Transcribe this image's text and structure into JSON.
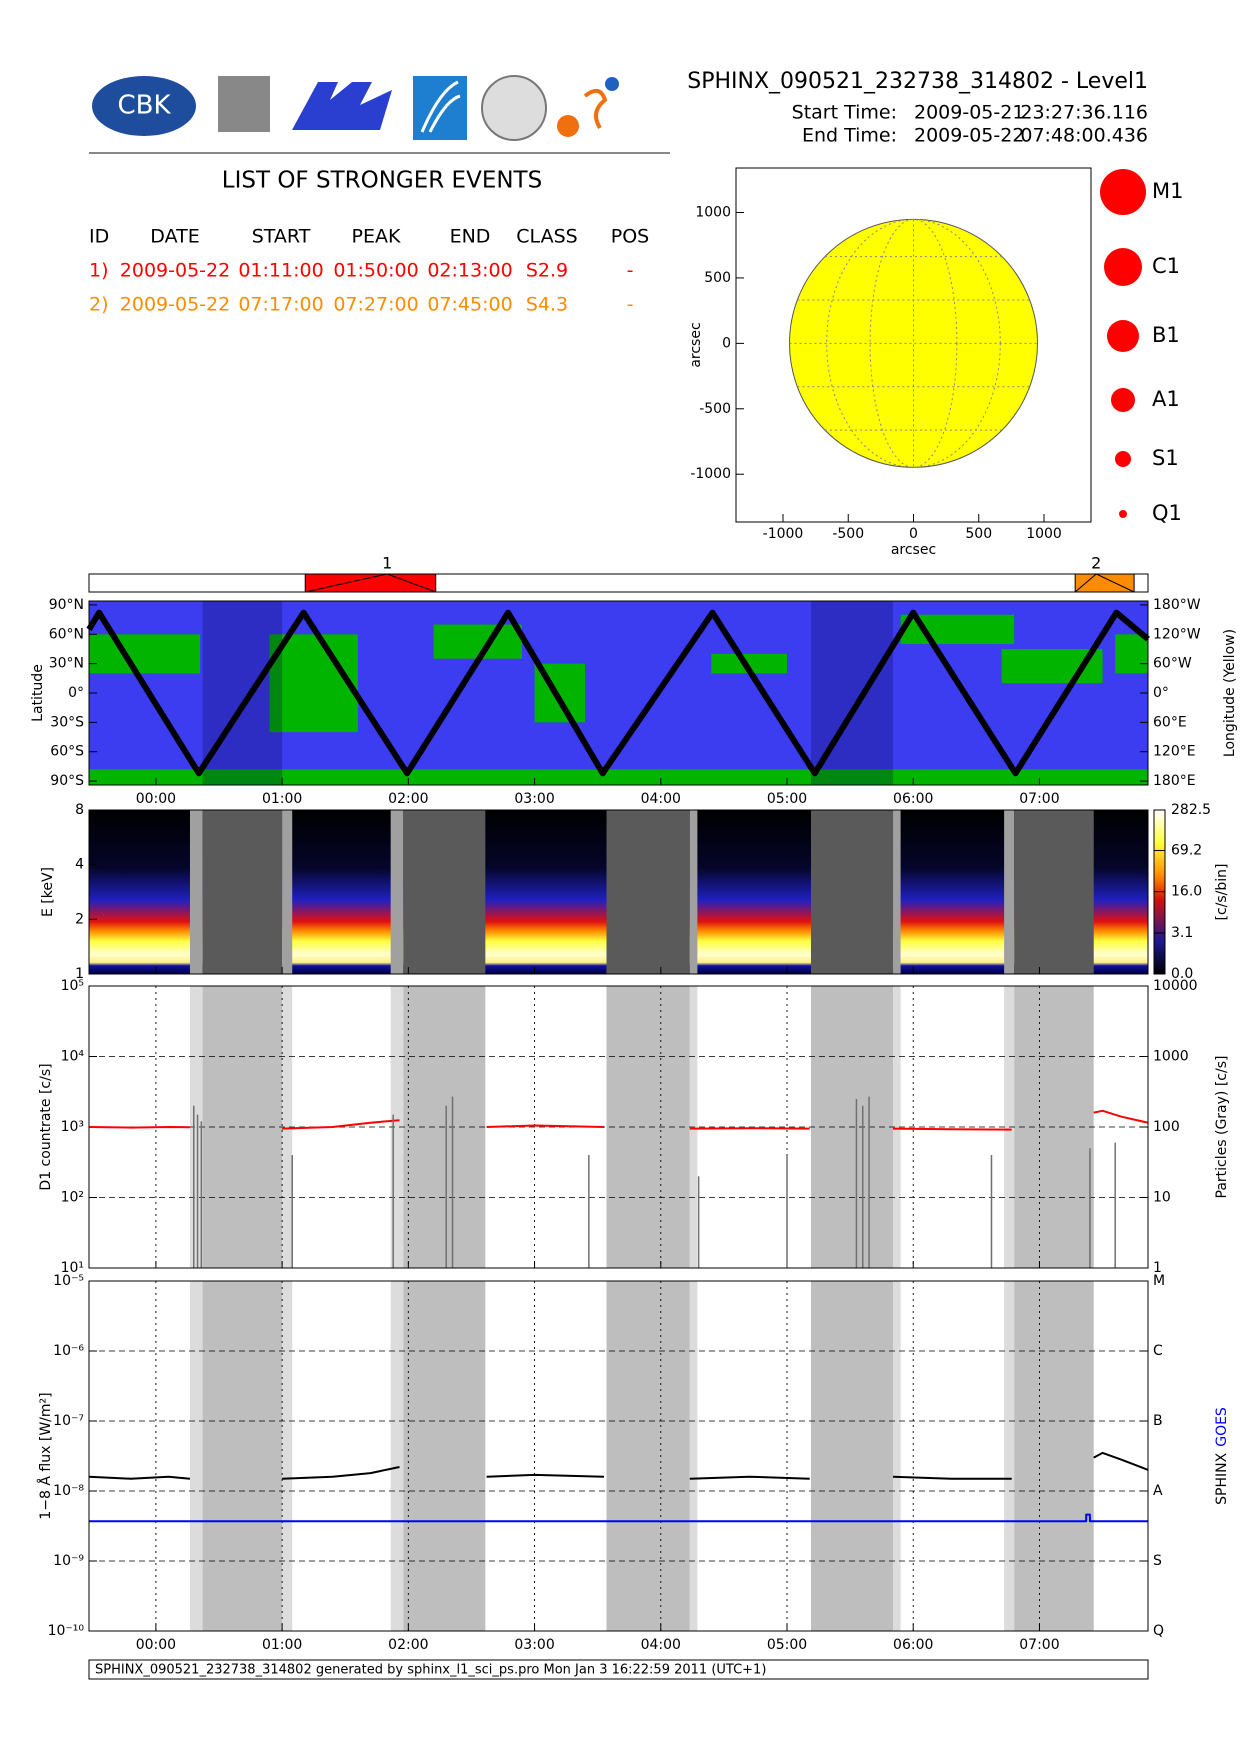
{
  "header": {
    "logo_text": "CBK",
    "title": "SPHINX_090521_232738_314802 - Level1",
    "start_label": "Start Time:",
    "start_date": "2009-05-21",
    "start_time": "23:27:36.116",
    "end_label": "End Time:",
    "end_date": "2009-05-22",
    "end_time": "07:48:00.436"
  },
  "events": {
    "title": "LIST OF STRONGER EVENTS",
    "columns": [
      "ID",
      "DATE",
      "START",
      "PEAK",
      "END",
      "CLASS",
      "POS"
    ],
    "rows": [
      {
        "color": "#ff0000",
        "cells": [
          "1)",
          "2009-05-22",
          "01:11:00",
          "01:50:00",
          "02:13:00",
          "S2.9",
          "-"
        ]
      },
      {
        "color": "#ff8c00",
        "cells": [
          "2)",
          "2009-05-22",
          "07:17:00",
          "07:27:00",
          "07:45:00",
          "S4.3",
          "-"
        ]
      }
    ]
  },
  "class_legend": {
    "color": "#ff0000",
    "labels": [
      "M1",
      "C1",
      "B1",
      "A1",
      "S1",
      "Q1"
    ]
  },
  "shading": [
    {
      "start": 0.27,
      "end": 0.37,
      "kind": "light"
    },
    {
      "start": 0.37,
      "end": 1.0,
      "kind": "dark"
    },
    {
      "start": 1.0,
      "end": 1.08,
      "kind": "light"
    },
    {
      "start": 1.86,
      "end": 1.96,
      "kind": "light"
    },
    {
      "start": 1.96,
      "end": 2.61,
      "kind": "dark"
    },
    {
      "start": 3.57,
      "end": 4.23,
      "kind": "dark"
    },
    {
      "start": 4.23,
      "end": 4.29,
      "kind": "light"
    },
    {
      "start": 5.19,
      "end": 5.84,
      "kind": "dark"
    },
    {
      "start": 5.84,
      "end": 5.9,
      "kind": "light"
    },
    {
      "start": 6.72,
      "end": 6.8,
      "kind": "light"
    },
    {
      "start": 6.8,
      "end": 7.43,
      "kind": "dark"
    }
  ],
  "footer": "SPHINX_090521_232738_314802 generated by sphinx_l1_sci_ps.pro Mon Jan  3 16:22:59 2011 (UTC+1)",
  "chart_data": [
    {
      "type": "disk",
      "xlabel": "arcsec",
      "ylabel": "arcsec",
      "xlim": [
        -1360,
        1360
      ],
      "ylim": [
        -1365,
        1340
      ],
      "xticks": [
        -1000,
        -500,
        0,
        500,
        1000
      ],
      "yticks": [
        -1000,
        -500,
        0,
        500,
        1000
      ],
      "radius": 950,
      "color": "#ffff00"
    },
    {
      "type": "events",
      "xlim": [
        -0.53,
        7.86
      ],
      "events": [
        {
          "label": "1",
          "start": 1.183,
          "peak": 1.833,
          "end": 2.217,
          "color": "#ff0000"
        },
        {
          "label": "2",
          "start": 7.283,
          "peak": 7.45,
          "end": 7.75,
          "color": "#ff8c00"
        }
      ]
    },
    {
      "type": "map",
      "ylabel": "Latitude",
      "y2label": "Longitude (Yellow)",
      "xlim": [
        -0.53,
        7.86
      ],
      "xticks": [
        {
          "value": 0,
          "label": "00:00"
        },
        {
          "value": 1,
          "label": "01:00"
        },
        {
          "value": 2,
          "label": "02:00"
        },
        {
          "value": 3,
          "label": "03:00"
        },
        {
          "value": 4,
          "label": "04:00"
        },
        {
          "value": 5,
          "label": "05:00"
        },
        {
          "value": 6,
          "label": "06:00"
        },
        {
          "value": 7,
          "label": "07:00"
        }
      ],
      "ylim": [
        -94,
        94
      ],
      "yticks": [
        {
          "value": 90,
          "label": "90°N"
        },
        {
          "value": 60,
          "label": "60°N"
        },
        {
          "value": 30,
          "label": "30°N"
        },
        {
          "value": 0,
          "label": "0°"
        },
        {
          "value": -30,
          "label": "30°S"
        },
        {
          "value": -60,
          "label": "60°S"
        },
        {
          "value": -90,
          "label": "90°S"
        }
      ],
      "y2lim": [
        -188,
        188
      ],
      "y2ticks": [
        {
          "value": 180,
          "label": "180°W"
        },
        {
          "value": 120,
          "label": "120°W"
        },
        {
          "value": 60,
          "label": "60°W"
        },
        {
          "value": 0,
          "label": "0°"
        },
        {
          "value": -60,
          "label": "60°E"
        },
        {
          "value": -120,
          "label": "120°E"
        },
        {
          "value": -180,
          "label": "180°E"
        }
      ],
      "background": "#3c3cf0",
      "land_color": "#00b400",
      "series": [
        {
          "color": "#000000",
          "x": [
            -0.53,
            -0.45,
            0.34,
            1.17,
            1.99,
            2.79,
            3.54,
            4.41,
            5.22,
            6.0,
            6.81,
            7.61,
            7.86
          ],
          "values": [
            65,
            82,
            -82,
            82,
            -82,
            82,
            -82,
            82,
            -82,
            82,
            -82,
            82,
            55
          ]
        }
      ]
    },
    {
      "type": "spectrogram",
      "ylabel": "E [keV]",
      "xlim": [
        -0.53,
        7.86
      ],
      "xticks": [
        0,
        1,
        2,
        3,
        4,
        5,
        6,
        7
      ],
      "log_y": true,
      "ylim": [
        1,
        8
      ],
      "yticks": [
        1,
        2,
        4,
        8
      ],
      "colorbar_label": "[c/s/bin]",
      "clim": [
        0,
        282.5
      ],
      "cticks": [
        282.5,
        69.2,
        {
          "value": 16,
          "label": "16.0"
        },
        3.1,
        {
          "value": 0,
          "label": "0.0"
        }
      ],
      "shade_colors": {
        "dark": "#5a5a5a",
        "light": "#a0a0a0"
      }
    },
    {
      "type": "line",
      "ylabel": "D1 countrate [c/s]",
      "y2label": "Particles (Gray) [c/s]",
      "xlim": [
        -0.53,
        7.86
      ],
      "xticks": [
        0,
        1,
        2,
        3,
        4,
        5,
        6,
        7
      ],
      "log_y": true,
      "ylim": [
        10,
        100000
      ],
      "yticks": [
        {
          "value": 10,
          "label": "10¹"
        },
        {
          "value": 100,
          "label": "10²"
        },
        {
          "value": 1000,
          "label": "10³"
        },
        {
          "value": 10000,
          "label": "10⁴"
        },
        {
          "value": 100000,
          "label": "10⁵"
        }
      ],
      "y2lim": [
        1,
        10000
      ],
      "y2ticks": [
        10000,
        1000,
        100,
        10,
        1
      ],
      "shade_colors": {
        "dark": "#bebebe",
        "light": "#dcdcdc"
      },
      "x": [
        -0.53,
        -0.2,
        0.1,
        0.27,
        0.6,
        1.0,
        1.4,
        1.7,
        1.93,
        2.3,
        2.62,
        3.0,
        3.55,
        3.9,
        4.23,
        4.7,
        5.18,
        5.5,
        5.84,
        6.3,
        6.78,
        7.1,
        7.43,
        7.5,
        7.65,
        7.86
      ],
      "series": [
        {
          "color": "#ff0000",
          "values": [
            1000,
            980,
            1000,
            990,
            null,
            950,
            1000,
            1150,
            1250,
            null,
            1000,
            1050,
            1000,
            null,
            950,
            960,
            950,
            null,
            950,
            930,
            920,
            null,
            1600,
            1700,
            1400,
            1150
          ]
        },
        {
          "color": "#707070",
          "axis": "y2",
          "style": "spikes",
          "x": [
            0.3,
            0.33,
            0.36,
            1.08,
            1.88,
            2.3,
            2.35,
            3.43,
            4.3,
            5.0,
            5.55,
            5.6,
            5.65,
            6.62,
            7.4,
            7.6
          ],
          "values": [
            200,
            150,
            120,
            40,
            150,
            200,
            270,
            40,
            20,
            40,
            250,
            200,
            270,
            40,
            50,
            60
          ]
        }
      ]
    },
    {
      "type": "line",
      "ylabel": "1−8 Å flux [W/m²]",
      "xlim": [
        -0.53,
        7.86
      ],
      "xticks": [
        {
          "value": 0,
          "label": "00:00"
        },
        {
          "value": 1,
          "label": "01:00"
        },
        {
          "value": 2,
          "label": "02:00"
        },
        {
          "value": 3,
          "label": "03:00"
        },
        {
          "value": 4,
          "label": "04:00"
        },
        {
          "value": 5,
          "label": "05:00"
        },
        {
          "value": 6,
          "label": "06:00"
        },
        {
          "value": 7,
          "label": "07:00"
        }
      ],
      "log_y": true,
      "ylim": [
        1e-10,
        1e-05
      ],
      "yticks": [
        {
          "value": 1e-10,
          "label": "10⁻¹⁰"
        },
        {
          "value": 1e-09,
          "label": "10⁻⁹"
        },
        {
          "value": 1e-08,
          "label": "10⁻⁸"
        },
        {
          "value": 1e-07,
          "label": "10⁻⁷"
        },
        {
          "value": 1e-06,
          "label": "10⁻⁶"
        },
        {
          "value": 1e-05,
          "label": "10⁻⁵"
        }
      ],
      "y2ticks": [
        {
          "value": 1e-05,
          "label": "M"
        },
        {
          "value": 1e-06,
          "label": "C"
        },
        {
          "value": 1e-07,
          "label": "B"
        },
        {
          "value": 1e-08,
          "label": "A"
        },
        {
          "value": 1e-09,
          "label": "S"
        },
        {
          "value": 1e-10,
          "label": "Q"
        }
      ],
      "shade_colors": {
        "dark": "#bebebe",
        "light": "#dcdcdc"
      },
      "x": [
        -0.53,
        -0.2,
        0.1,
        0.27,
        0.6,
        1.0,
        1.4,
        1.7,
        1.93,
        2.3,
        2.62,
        3.0,
        3.55,
        3.9,
        4.23,
        4.7,
        5.18,
        5.5,
        5.84,
        6.3,
        6.78,
        7.1,
        7.43,
        7.5,
        7.65,
        7.86
      ],
      "series": [
        {
          "name": "SPHINX",
          "color": "#000000",
          "values": [
            1.6e-08,
            1.5e-08,
            1.6e-08,
            1.5e-08,
            null,
            1.5e-08,
            1.6e-08,
            1.8e-08,
            2.2e-08,
            null,
            1.6e-08,
            1.7e-08,
            1.6e-08,
            null,
            1.5e-08,
            1.6e-08,
            1.5e-08,
            null,
            1.6e-08,
            1.5e-08,
            1.5e-08,
            null,
            3e-08,
            3.5e-08,
            2.8e-08,
            2e-08
          ]
        },
        {
          "name": "GOES",
          "color": "#0000ff",
          "x": [
            -0.53,
            7.37,
            7.37,
            7.4,
            7.4,
            7.86
          ],
          "values": [
            3.7e-09,
            3.7e-09,
            4.6e-09,
            4.6e-09,
            3.7e-09,
            3.7e-09
          ]
        }
      ]
    }
  ]
}
